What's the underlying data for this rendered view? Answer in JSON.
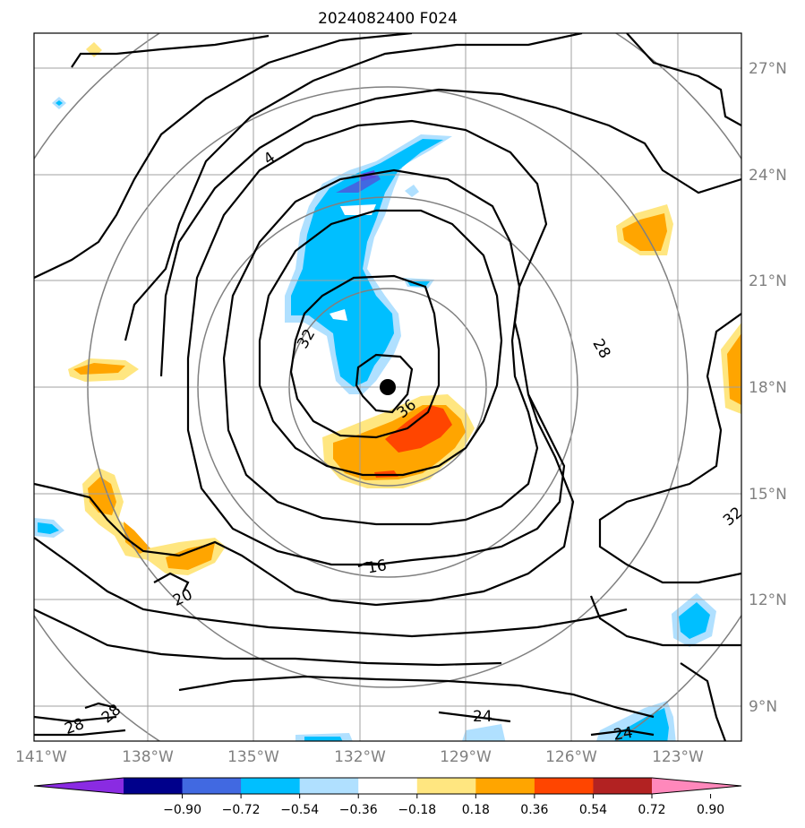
{
  "title": "2024082400 F024",
  "lon_labels": [
    "141°W",
    "138°W",
    "135°W",
    "132°W",
    "129°W",
    "126°W",
    "123°W"
  ],
  "lat_labels": [
    "27°N",
    "24°N",
    "21°N",
    "18°N",
    "15°N",
    "12°N",
    "9°N"
  ],
  "colorbar": {
    "ticks": [
      "−0.90",
      "−0.72",
      "−0.54",
      "−0.36",
      "−0.18",
      "0.18",
      "0.36",
      "0.54",
      "0.72",
      "0.90"
    ],
    "colors": [
      "#8a2be2",
      "#00008b",
      "#4169e1",
      "#00bfff",
      "#b0e0ff",
      "#ffffff",
      "#ffe680",
      "#ffa500",
      "#ff4500",
      "#b22222",
      "#ff88bb"
    ]
  },
  "contour_labels": [
    "4",
    "32",
    "36",
    "28",
    "32",
    "16",
    "20",
    "28",
    "28",
    "24",
    "24"
  ],
  "storm_center": {
    "lon": -130.8,
    "lat": 18.0
  }
}
